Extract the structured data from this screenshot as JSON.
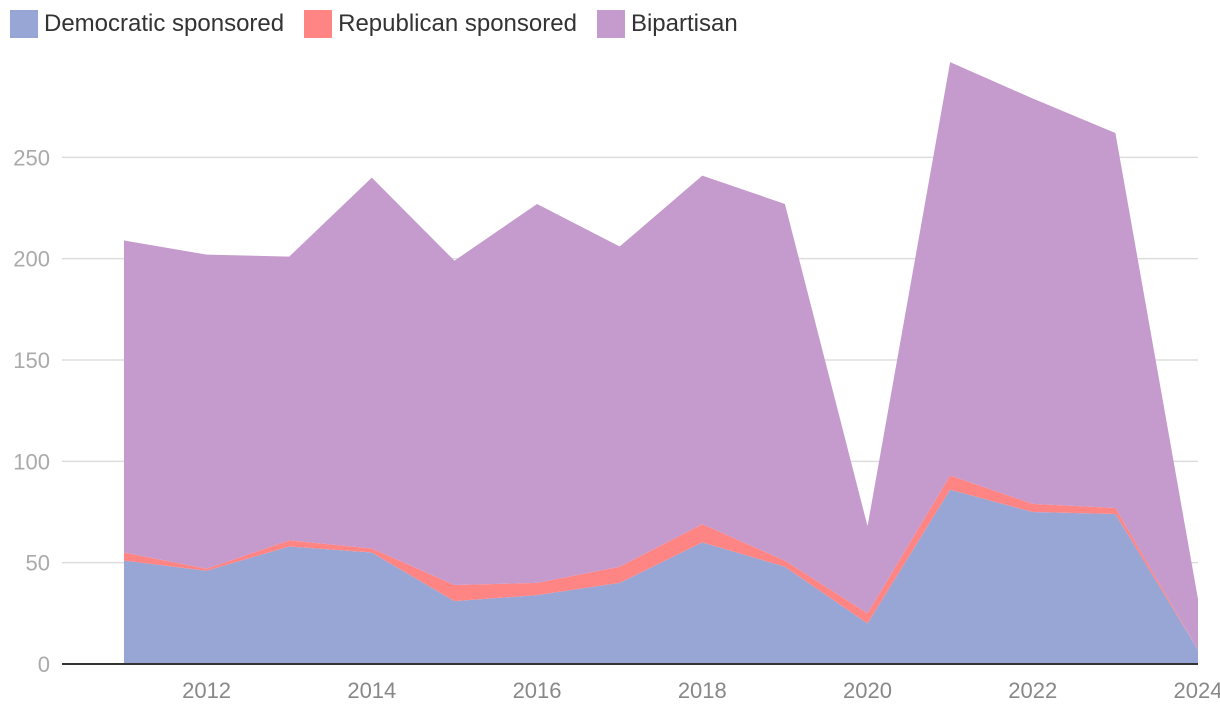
{
  "chart_data": {
    "type": "area",
    "stacked": true,
    "title": "",
    "xlabel": "",
    "ylabel": "",
    "x": [
      2011,
      2012,
      2013,
      2014,
      2015,
      2016,
      2017,
      2018,
      2019,
      2020,
      2021,
      2022,
      2023,
      2024
    ],
    "xlim": [
      2010.25,
      2024.0
    ],
    "ylim": [
      0,
      300
    ],
    "y_ticks": [
      0,
      50,
      100,
      150,
      200,
      250
    ],
    "x_ticks": [
      2012,
      2014,
      2016,
      2018,
      2020,
      2022,
      2024
    ],
    "grid": "horizontal",
    "legend_position": "top-left",
    "series": [
      {
        "name": "Democratic sponsored",
        "color": "#98a6d6",
        "values": [
          51,
          46,
          58,
          55,
          31,
          34,
          40,
          60,
          48,
          20,
          86,
          75,
          74,
          7
        ]
      },
      {
        "name": "Republican sponsored",
        "color": "#ff8585",
        "values": [
          4,
          1,
          3,
          2,
          8,
          6,
          8,
          9,
          3,
          5,
          7,
          4,
          3,
          0
        ]
      },
      {
        "name": "Bipartisan",
        "color": "#c59acd",
        "values": [
          154,
          155,
          140,
          183,
          160,
          187,
          158,
          172,
          176,
          43,
          204,
          200,
          185,
          25
        ]
      }
    ]
  }
}
